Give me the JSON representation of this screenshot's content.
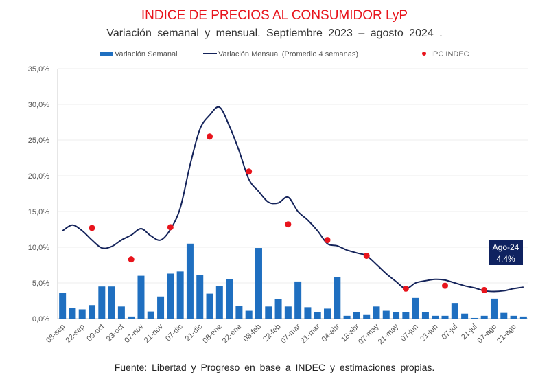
{
  "chart_data": {
    "type": "bar+line+scatter",
    "title": "INDICE DE PRECIOS AL CONSUMIDOR LyP",
    "subtitle": "Variación   semanal y   mensual.  Septiembre   2023 – agosto  2024 .",
    "source": "Fuente:  Libertad y Progreso     en base a INDEC y estimaciones propias.",
    "xlabel": "",
    "ylabel": "",
    "ylim": [
      0,
      35
    ],
    "yticks": [
      "0,0%",
      "5,0%",
      "10,0%",
      "15,0%",
      "20,0%",
      "25,0%",
      "30,0%",
      "35,0%"
    ],
    "grid": true,
    "legend_placement": "top",
    "x_tick_labels": [
      "08-sep",
      "22-sep",
      "09-oct",
      "23-oct",
      "07-nov",
      "21-nov",
      "07-dic",
      "21-dic",
      "08-ene",
      "22-ene",
      "08-feb",
      "22-feb",
      "07-mar",
      "21-mar",
      "04-abr",
      "18-abr",
      "07-may",
      "21-may",
      "07-jun",
      "21-jun",
      "07-jul",
      "21-jul",
      "07-ago",
      "21-ago"
    ],
    "series": [
      {
        "name": "Variación Semanal",
        "type": "bar",
        "color": "#1f6fc0",
        "values": [
          3.6,
          1.5,
          1.3,
          1.9,
          4.5,
          4.5,
          1.7,
          0.3,
          6.0,
          1.0,
          3.1,
          6.3,
          6.6,
          10.5,
          6.1,
          3.5,
          4.6,
          5.5,
          1.8,
          1.1,
          9.9,
          1.7,
          2.7,
          1.7,
          5.2,
          1.6,
          0.9,
          1.4,
          5.8,
          0.4,
          0.9,
          0.6,
          1.7,
          1.1,
          0.9,
          0.9,
          2.9,
          0.9,
          0.4,
          0.4,
          2.2,
          0.7,
          0.1,
          0.4,
          2.8,
          0.8,
          0.4,
          0.3
        ]
      },
      {
        "name": "Variación Mensual (Promedio 4 semanas)",
        "type": "line",
        "color": "#14235a",
        "values": [
          12.3,
          13.1,
          12.3,
          11.0,
          9.9,
          10.1,
          11.0,
          11.7,
          12.6,
          11.6,
          11.0,
          12.5,
          15.5,
          21.5,
          26.5,
          28.5,
          29.6,
          27.0,
          23.5,
          19.5,
          17.8,
          16.3,
          16.2,
          17.0,
          15.0,
          13.8,
          12.3,
          10.5,
          10.2,
          9.6,
          9.2,
          8.8,
          7.6,
          6.3,
          5.2,
          4.2,
          5.0,
          5.3,
          5.5,
          5.4,
          5.0,
          4.6,
          4.3,
          3.9,
          3.8,
          3.9,
          4.2,
          4.4
        ]
      },
      {
        "name": "IPC INDEC",
        "type": "scatter",
        "color": "#e8141c",
        "week_index": [
          3,
          7,
          11,
          15,
          19,
          23,
          27,
          31,
          35,
          39,
          43
        ],
        "values": [
          12.7,
          8.3,
          12.8,
          25.5,
          20.6,
          13.2,
          11.0,
          8.8,
          4.2,
          4.6,
          4.0
        ]
      }
    ],
    "annotation": {
      "line1": "Ago-24",
      "line2": "4,4%",
      "color": "#0f2260"
    }
  }
}
